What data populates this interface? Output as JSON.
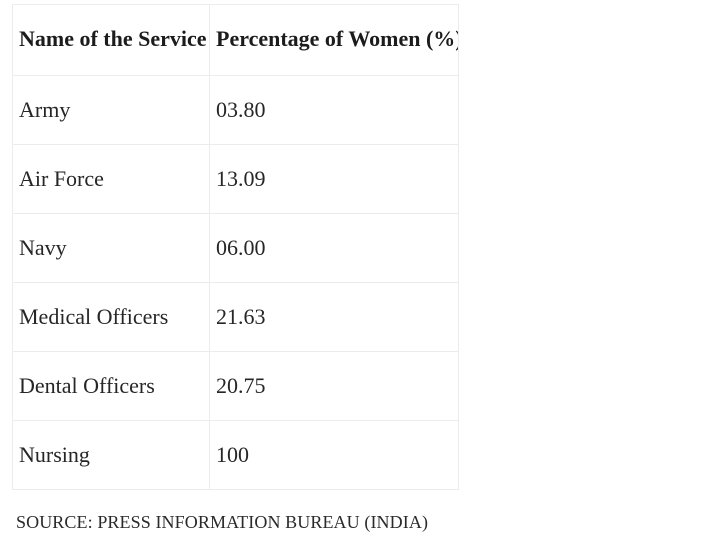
{
  "table": {
    "headers": [
      "Name of the Service",
      "Percentage of Women (%)"
    ],
    "rows": [
      [
        "Army",
        "03.80"
      ],
      [
        "Air Force",
        "13.09"
      ],
      [
        "Navy",
        "06.00"
      ],
      [
        "Medical Officers",
        "21.63"
      ],
      [
        "Dental Officers",
        "20.75"
      ],
      [
        "Nursing",
        "100"
      ]
    ]
  },
  "source": "SOURCE: PRESS INFORMATION BUREAU (INDIA)"
}
